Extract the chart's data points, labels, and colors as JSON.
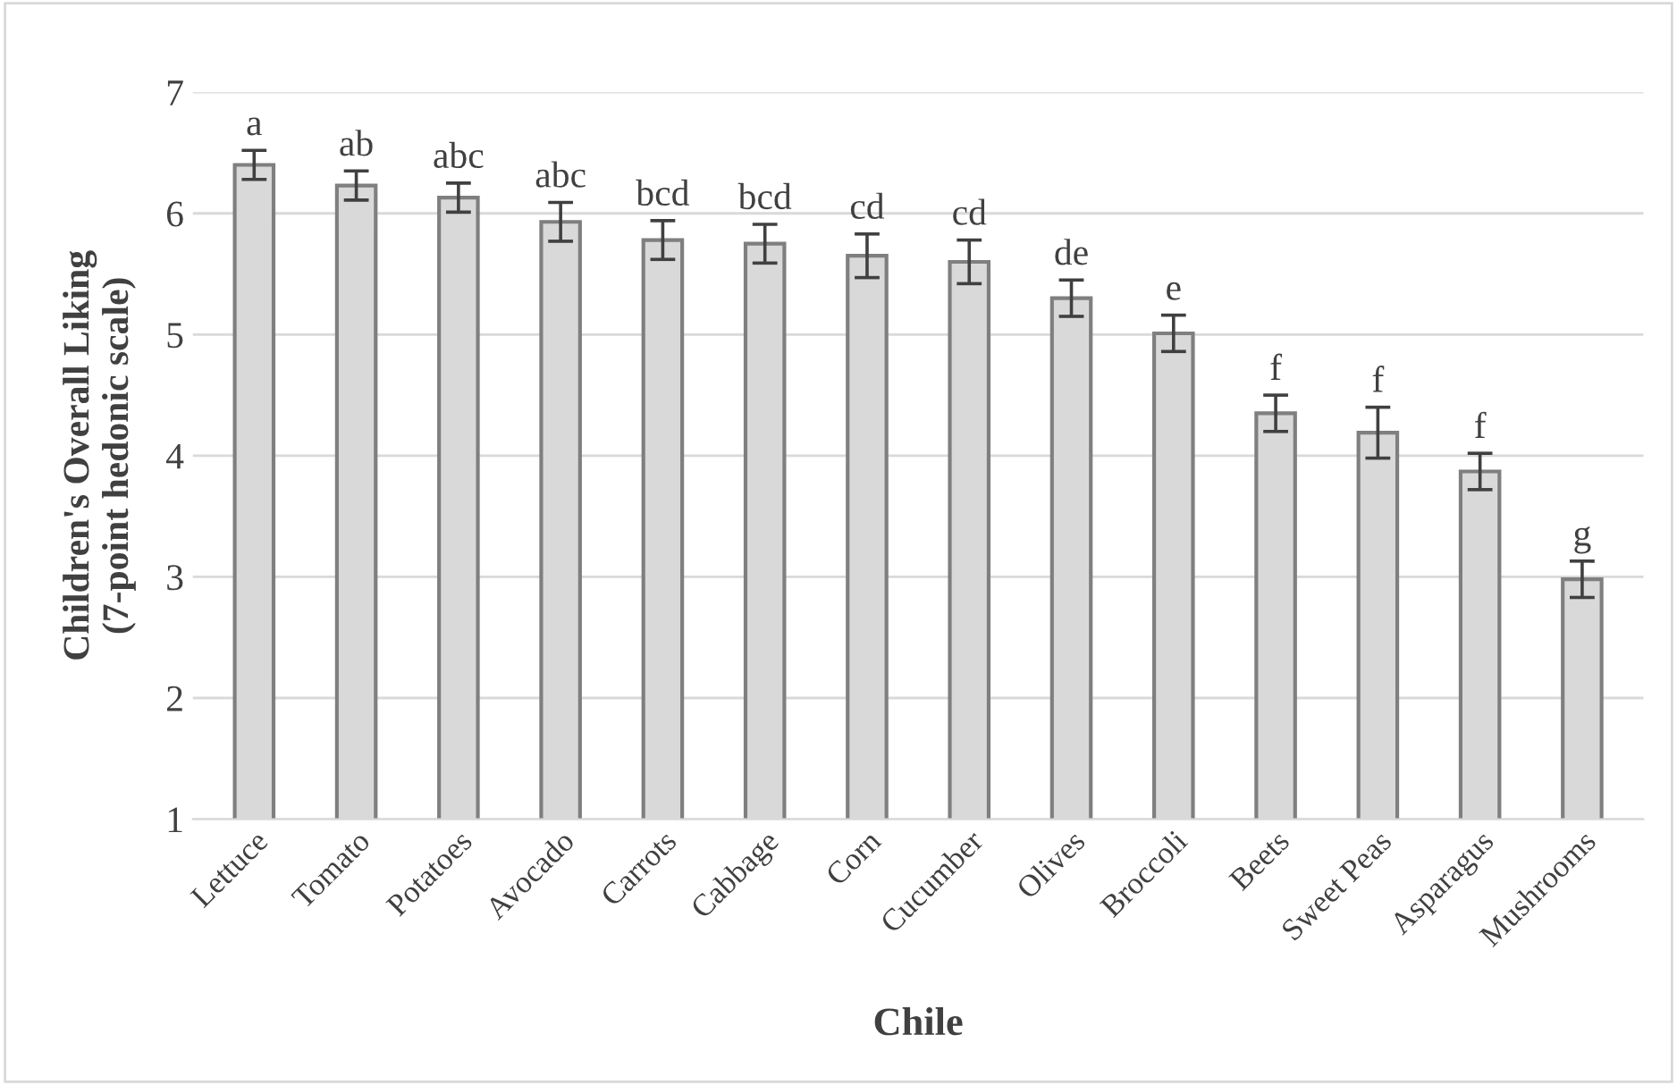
{
  "chart_data": {
    "type": "bar",
    "xlabel": "Chile",
    "ylabel": "Children's Overall Liking\n(7-point hedonic scale)",
    "categories": [
      "Lettuce",
      "Tomato",
      "Potatoes",
      "Avocado",
      "Carrots",
      "Cabbage",
      "Corn",
      "Cucumber",
      "Olives",
      "Broccoli",
      "Beets",
      "Sweet Peas",
      "Asparagus",
      "Mushrooms"
    ],
    "values": [
      6.4,
      6.23,
      6.13,
      5.93,
      5.78,
      5.75,
      5.65,
      5.6,
      5.3,
      5.01,
      4.35,
      4.19,
      3.87,
      2.98
    ],
    "errors": [
      0.12,
      0.12,
      0.12,
      0.16,
      0.16,
      0.16,
      0.18,
      0.18,
      0.15,
      0.15,
      0.15,
      0.21,
      0.15,
      0.15
    ],
    "color": "#d9d9d9",
    "ylim": [
      1,
      7
    ],
    "yticks": [
      1,
      2,
      3,
      4,
      5,
      6,
      7
    ],
    "grid": "y",
    "annotations": [
      {
        "text": "a",
        "x": "Lettuce",
        "y": 6.52
      },
      {
        "text": "ab",
        "x": "Tomato",
        "y": 6.35
      },
      {
        "text": "abc",
        "x": "Potatoes",
        "y": 6.25
      },
      {
        "text": "abc",
        "x": "Avocado",
        "y": 6.09
      },
      {
        "text": "bcd",
        "x": "Carrots",
        "y": 5.94
      },
      {
        "text": "bcd",
        "x": "Cabbage",
        "y": 5.91
      },
      {
        "text": "cd",
        "x": "Corn",
        "y": 5.83
      },
      {
        "text": "cd",
        "x": "Cucumber",
        "y": 5.78
      },
      {
        "text": "de",
        "x": "Olives",
        "y": 5.45
      },
      {
        "text": "e",
        "x": "Broccoli",
        "y": 5.16
      },
      {
        "text": "f",
        "x": "Beets",
        "y": 4.5
      },
      {
        "text": "f",
        "x": "Sweet Peas",
        "y": 4.4
      },
      {
        "text": "f",
        "x": "Asparagus",
        "y": 4.02
      },
      {
        "text": "g",
        "x": "Mushrooms",
        "y": 3.13
      }
    ]
  }
}
